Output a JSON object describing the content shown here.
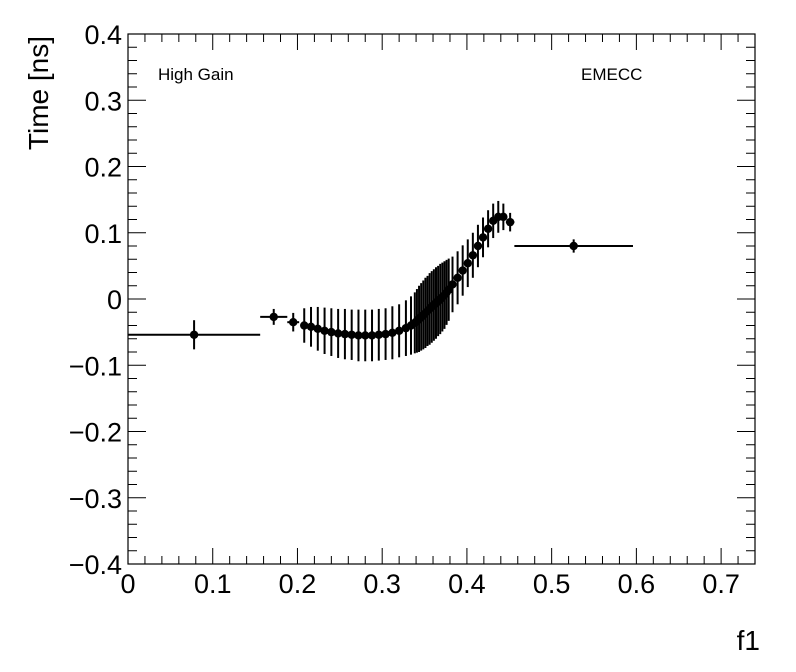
{
  "chart_data": {
    "type": "scatter",
    "xlabel": "f1",
    "ylabel": "Time [ns]",
    "xlim": [
      0,
      0.74
    ],
    "ylim": [
      -0.4,
      0.4
    ],
    "x_ticks": [
      "0",
      "0.1",
      "0.2",
      "0.3",
      "0.4",
      "0.5",
      "0.6",
      "0.7"
    ],
    "y_ticks": [
      "−0.4",
      "−0.3",
      "−0.2",
      "−0.1",
      "0",
      "0.1",
      "0.2",
      "0.3",
      "0.4"
    ],
    "annotations": {
      "left": "High Gain",
      "right": "EMECC"
    },
    "grid": false,
    "marker_color": "#000000",
    "points": [
      {
        "x": 0.078,
        "y": -0.054,
        "xerr": 0.078,
        "yerr": 0.022
      },
      {
        "x": 0.172,
        "y": -0.027,
        "xerr": 0.016,
        "yerr": 0.012
      },
      {
        "x": 0.195,
        "y": -0.035,
        "xerr": 0.007,
        "yerr": 0.014
      },
      {
        "x": 0.208,
        "y": -0.04,
        "xerr": 0.0035,
        "yerr": 0.026
      },
      {
        "x": 0.216,
        "y": -0.042,
        "xerr": 0.0035,
        "yerr": 0.03
      },
      {
        "x": 0.224,
        "y": -0.045,
        "xerr": 0.0035,
        "yerr": 0.033
      },
      {
        "x": 0.232,
        "y": -0.048,
        "xerr": 0.0035,
        "yerr": 0.035
      },
      {
        "x": 0.24,
        "y": -0.05,
        "xerr": 0.0035,
        "yerr": 0.036
      },
      {
        "x": 0.248,
        "y": -0.052,
        "xerr": 0.0035,
        "yerr": 0.037
      },
      {
        "x": 0.256,
        "y": -0.053,
        "xerr": 0.0035,
        "yerr": 0.038
      },
      {
        "x": 0.264,
        "y": -0.054,
        "xerr": 0.0035,
        "yerr": 0.038
      },
      {
        "x": 0.272,
        "y": -0.055,
        "xerr": 0.0035,
        "yerr": 0.039
      },
      {
        "x": 0.28,
        "y": -0.055,
        "xerr": 0.0035,
        "yerr": 0.039
      },
      {
        "x": 0.288,
        "y": -0.055,
        "xerr": 0.0035,
        "yerr": 0.039
      },
      {
        "x": 0.296,
        "y": -0.054,
        "xerr": 0.0035,
        "yerr": 0.039
      },
      {
        "x": 0.304,
        "y": -0.053,
        "xerr": 0.0035,
        "yerr": 0.039
      },
      {
        "x": 0.312,
        "y": -0.051,
        "xerr": 0.0035,
        "yerr": 0.04
      },
      {
        "x": 0.32,
        "y": -0.048,
        "xerr": 0.0035,
        "yerr": 0.04
      },
      {
        "x": 0.328,
        "y": -0.044,
        "xerr": 0.0035,
        "yerr": 0.042
      },
      {
        "x": 0.334,
        "y": -0.04,
        "xerr": 0.0025,
        "yerr": 0.044
      },
      {
        "x": 0.3385,
        "y": -0.036,
        "xerr": 0.001,
        "yerr": 0.046
      },
      {
        "x": 0.341,
        "y": -0.033,
        "xerr": 0.001,
        "yerr": 0.048
      },
      {
        "x": 0.3435,
        "y": -0.03,
        "xerr": 0.001,
        "yerr": 0.05
      },
      {
        "x": 0.346,
        "y": -0.027,
        "xerr": 0.001,
        "yerr": 0.051
      },
      {
        "x": 0.3485,
        "y": -0.024,
        "xerr": 0.001,
        "yerr": 0.052
      },
      {
        "x": 0.351,
        "y": -0.021,
        "xerr": 0.001,
        "yerr": 0.053
      },
      {
        "x": 0.3535,
        "y": -0.018,
        "xerr": 0.001,
        "yerr": 0.053
      },
      {
        "x": 0.356,
        "y": -0.015,
        "xerr": 0.001,
        "yerr": 0.054
      },
      {
        "x": 0.3585,
        "y": -0.012,
        "xerr": 0.001,
        "yerr": 0.054
      },
      {
        "x": 0.361,
        "y": -0.009,
        "xerr": 0.001,
        "yerr": 0.054
      },
      {
        "x": 0.3635,
        "y": -0.006,
        "xerr": 0.001,
        "yerr": 0.054
      },
      {
        "x": 0.366,
        "y": -0.003,
        "xerr": 0.001,
        "yerr": 0.053
      },
      {
        "x": 0.3685,
        "y": 0.0,
        "xerr": 0.001,
        "yerr": 0.053
      },
      {
        "x": 0.371,
        "y": 0.003,
        "xerr": 0.001,
        "yerr": 0.052
      },
      {
        "x": 0.3735,
        "y": 0.006,
        "xerr": 0.001,
        "yerr": 0.051
      },
      {
        "x": 0.376,
        "y": 0.01,
        "xerr": 0.001,
        "yerr": 0.049
      },
      {
        "x": 0.3785,
        "y": 0.014,
        "xerr": 0.001,
        "yerr": 0.047
      },
      {
        "x": 0.383,
        "y": 0.022,
        "xerr": 0.003,
        "yerr": 0.042
      },
      {
        "x": 0.389,
        "y": 0.032,
        "xerr": 0.003,
        "yerr": 0.04
      },
      {
        "x": 0.395,
        "y": 0.043,
        "xerr": 0.003,
        "yerr": 0.038
      },
      {
        "x": 0.401,
        "y": 0.054,
        "xerr": 0.003,
        "yerr": 0.036
      },
      {
        "x": 0.407,
        "y": 0.066,
        "xerr": 0.003,
        "yerr": 0.034
      },
      {
        "x": 0.413,
        "y": 0.08,
        "xerr": 0.003,
        "yerr": 0.032
      },
      {
        "x": 0.419,
        "y": 0.093,
        "xerr": 0.003,
        "yerr": 0.03
      },
      {
        "x": 0.425,
        "y": 0.106,
        "xerr": 0.003,
        "yerr": 0.028
      },
      {
        "x": 0.431,
        "y": 0.118,
        "xerr": 0.003,
        "yerr": 0.026
      },
      {
        "x": 0.437,
        "y": 0.124,
        "xerr": 0.003,
        "yerr": 0.024
      },
      {
        "x": 0.443,
        "y": 0.124,
        "xerr": 0.003,
        "yerr": 0.02
      },
      {
        "x": 0.451,
        "y": 0.116,
        "xerr": 0.005,
        "yerr": 0.014
      },
      {
        "x": 0.526,
        "y": 0.08,
        "xerr": 0.07,
        "yerr": 0.01
      }
    ]
  }
}
